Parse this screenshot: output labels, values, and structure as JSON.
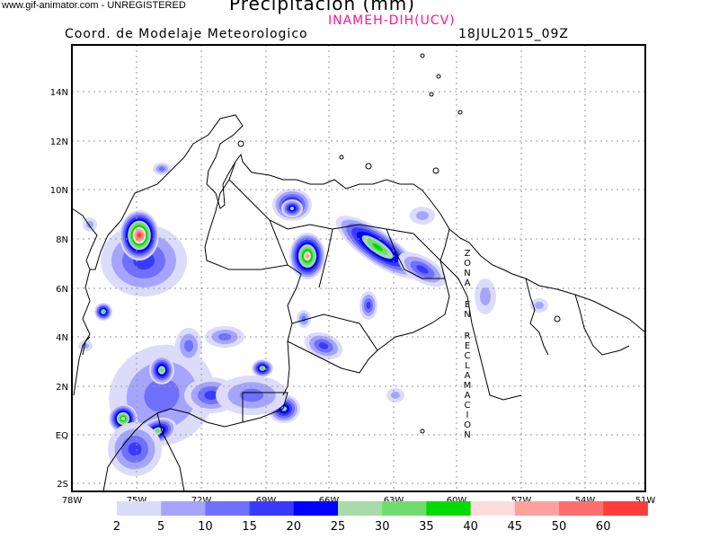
{
  "header": {
    "watermark": "www.gif-animator.com - UNREGISTERED",
    "title": "Precipitacion (mm)",
    "subtitle": "INAMEH-DIH(UCV)",
    "coordination": "Coord. de Modelaje Meteorologico",
    "valid_time": "18JUL2015_09Z"
  },
  "map": {
    "lat_labels": [
      "14N",
      "12N",
      "10N",
      "8N",
      "6N",
      "4N",
      "2N",
      "EQ",
      "2S"
    ],
    "lon_labels": [
      "78W",
      "75W",
      "72W",
      "69W",
      "66W",
      "63W",
      "60W",
      "57W",
      "54W",
      "51W"
    ],
    "annotation": "ZONA EN RECLAMACION",
    "grid": true
  },
  "colorbar": {
    "labels": [
      "2",
      "5",
      "10",
      "15",
      "20",
      "25",
      "30",
      "35",
      "40",
      "45",
      "50",
      "60"
    ],
    "colors": [
      "#dcdcfa",
      "#a5a5ff",
      "#7070ff",
      "#3a3aff",
      "#0000ff",
      "#a8dba8",
      "#70dc70",
      "#00dc00",
      "#ffdcdc",
      "#ffa0a0",
      "#ff6e6e",
      "#ff3c3c"
    ]
  }
}
